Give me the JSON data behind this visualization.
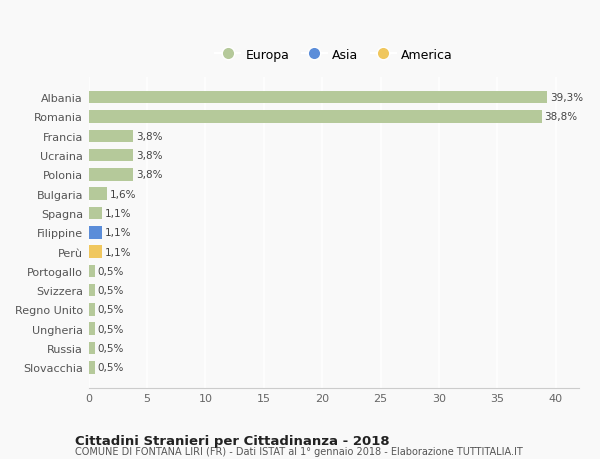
{
  "categories": [
    "Slovacchia",
    "Russia",
    "Ungheria",
    "Regno Unito",
    "Svizzera",
    "Portogallo",
    "Perù",
    "Filippine",
    "Spagna",
    "Bulgaria",
    "Polonia",
    "Ucraina",
    "Francia",
    "Romania",
    "Albania"
  ],
  "values": [
    0.5,
    0.5,
    0.5,
    0.5,
    0.5,
    0.5,
    1.1,
    1.1,
    1.1,
    1.6,
    3.8,
    3.8,
    3.8,
    38.8,
    39.3
  ],
  "colors": [
    "#b5c99a",
    "#b5c99a",
    "#b5c99a",
    "#b5c99a",
    "#b5c99a",
    "#b5c99a",
    "#f0c75e",
    "#5b8dd9",
    "#b5c99a",
    "#b5c99a",
    "#b5c99a",
    "#b5c99a",
    "#b5c99a",
    "#b5c99a",
    "#b5c99a"
  ],
  "labels": [
    "0,5%",
    "0,5%",
    "0,5%",
    "0,5%",
    "0,5%",
    "0,5%",
    "1,1%",
    "1,1%",
    "1,1%",
    "1,6%",
    "3,8%",
    "3,8%",
    "3,8%",
    "38,8%",
    "39,3%"
  ],
  "xlim": [
    0,
    42
  ],
  "xticks": [
    0,
    5,
    10,
    15,
    20,
    25,
    30,
    35,
    40
  ],
  "legend_items": [
    {
      "label": "Europa",
      "color": "#b5c99a"
    },
    {
      "label": "Asia",
      "color": "#5b8dd9"
    },
    {
      "label": "America",
      "color": "#f0c75e"
    }
  ],
  "title": "Cittadini Stranieri per Cittadinanza - 2018",
  "subtitle": "COMUNE DI FONTANA LIRI (FR) - Dati ISTAT al 1° gennaio 2018 - Elaborazione TUTTITALIA.IT",
  "background_color": "#f9f9f9",
  "grid_color": "#ffffff",
  "bar_height": 0.65
}
